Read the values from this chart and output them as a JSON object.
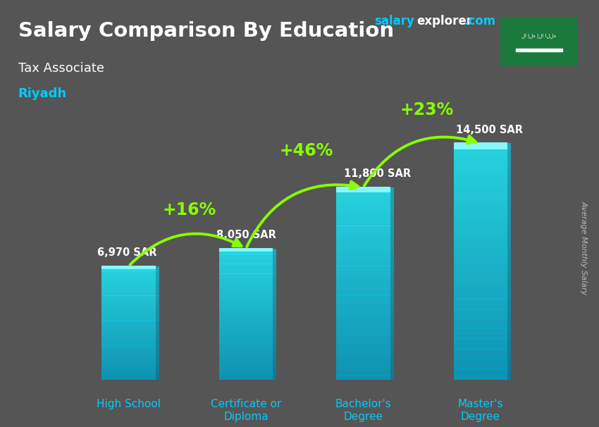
{
  "title": "Salary Comparison By Education",
  "subtitle": "Tax Associate",
  "city": "Riyadh",
  "ylabel": "Average Monthly Salary",
  "categories": [
    "High School",
    "Certificate or\nDiploma",
    "Bachelor's\nDegree",
    "Master's\nDegree"
  ],
  "values": [
    6970,
    8050,
    11800,
    14500
  ],
  "value_labels": [
    "6,970 SAR",
    "8,050 SAR",
    "11,800 SAR",
    "14,500 SAR"
  ],
  "pct_labels": [
    "+16%",
    "+46%",
    "+23%"
  ],
  "bar_color_top": "#55eeff",
  "bar_color_bottom": "#0099cc",
  "bg_color": "#555555",
  "title_color": "#ffffff",
  "subtitle_color": "#ffffff",
  "city_color": "#00ccff",
  "label_color": "#00ccff",
  "pct_color": "#88ff00",
  "arrow_color": "#88ff00",
  "watermark_salary_color": "#00ccff",
  "watermark_explorer_color": "#ffffff",
  "value_label_color": "#ffffff",
  "ylabel_color": "#bbbbbb",
  "figsize": [
    8.5,
    6.06
  ],
  "dpi": 100,
  "max_val": 16500
}
